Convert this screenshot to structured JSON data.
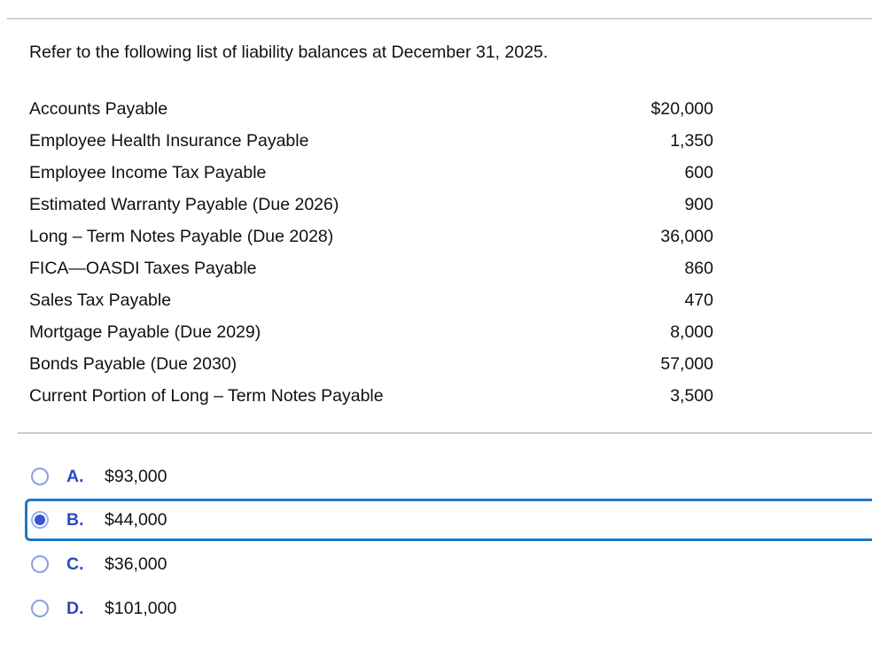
{
  "question": {
    "prompt": "Refer to the following list of liability balances at December 31, 2025."
  },
  "liabilities": {
    "rows": [
      {
        "label": "Accounts Payable",
        "value": "$20,000"
      },
      {
        "label": "Employee Health Insurance Payable",
        "value": "1,350"
      },
      {
        "label": "Employee Income Tax Payable",
        "value": "600"
      },
      {
        "label": "Estimated Warranty Payable (Due 2026)",
        "value": "900"
      },
      {
        "label": "Long – Term Notes Payable (Due 2028)",
        "value": "36,000"
      },
      {
        "label": "FICA—OASDI Taxes Payable",
        "value": "860"
      },
      {
        "label": "Sales Tax Payable",
        "value": "470"
      },
      {
        "label": "Mortgage Payable (Due 2029)",
        "value": "8,000"
      },
      {
        "label": "Bonds Payable (Due 2030)",
        "value": "57,000"
      },
      {
        "label": "Current Portion of Long – Term Notes Payable",
        "value": "3,500"
      }
    ]
  },
  "options": [
    {
      "letter": "A.",
      "text": "$93,000",
      "selected": false
    },
    {
      "letter": "B.",
      "text": "$44,000",
      "selected": true
    },
    {
      "letter": "C.",
      "text": "$36,000",
      "selected": false
    },
    {
      "letter": "D.",
      "text": "$101,000",
      "selected": false
    }
  ],
  "colors": {
    "option_letter_blue": "#2b49c5",
    "selected_border_blue": "#1e78c8",
    "radio_ring": "#8d9fe3",
    "radio_dot": "#3b55d2",
    "divider_gray": "#cdd1db"
  }
}
